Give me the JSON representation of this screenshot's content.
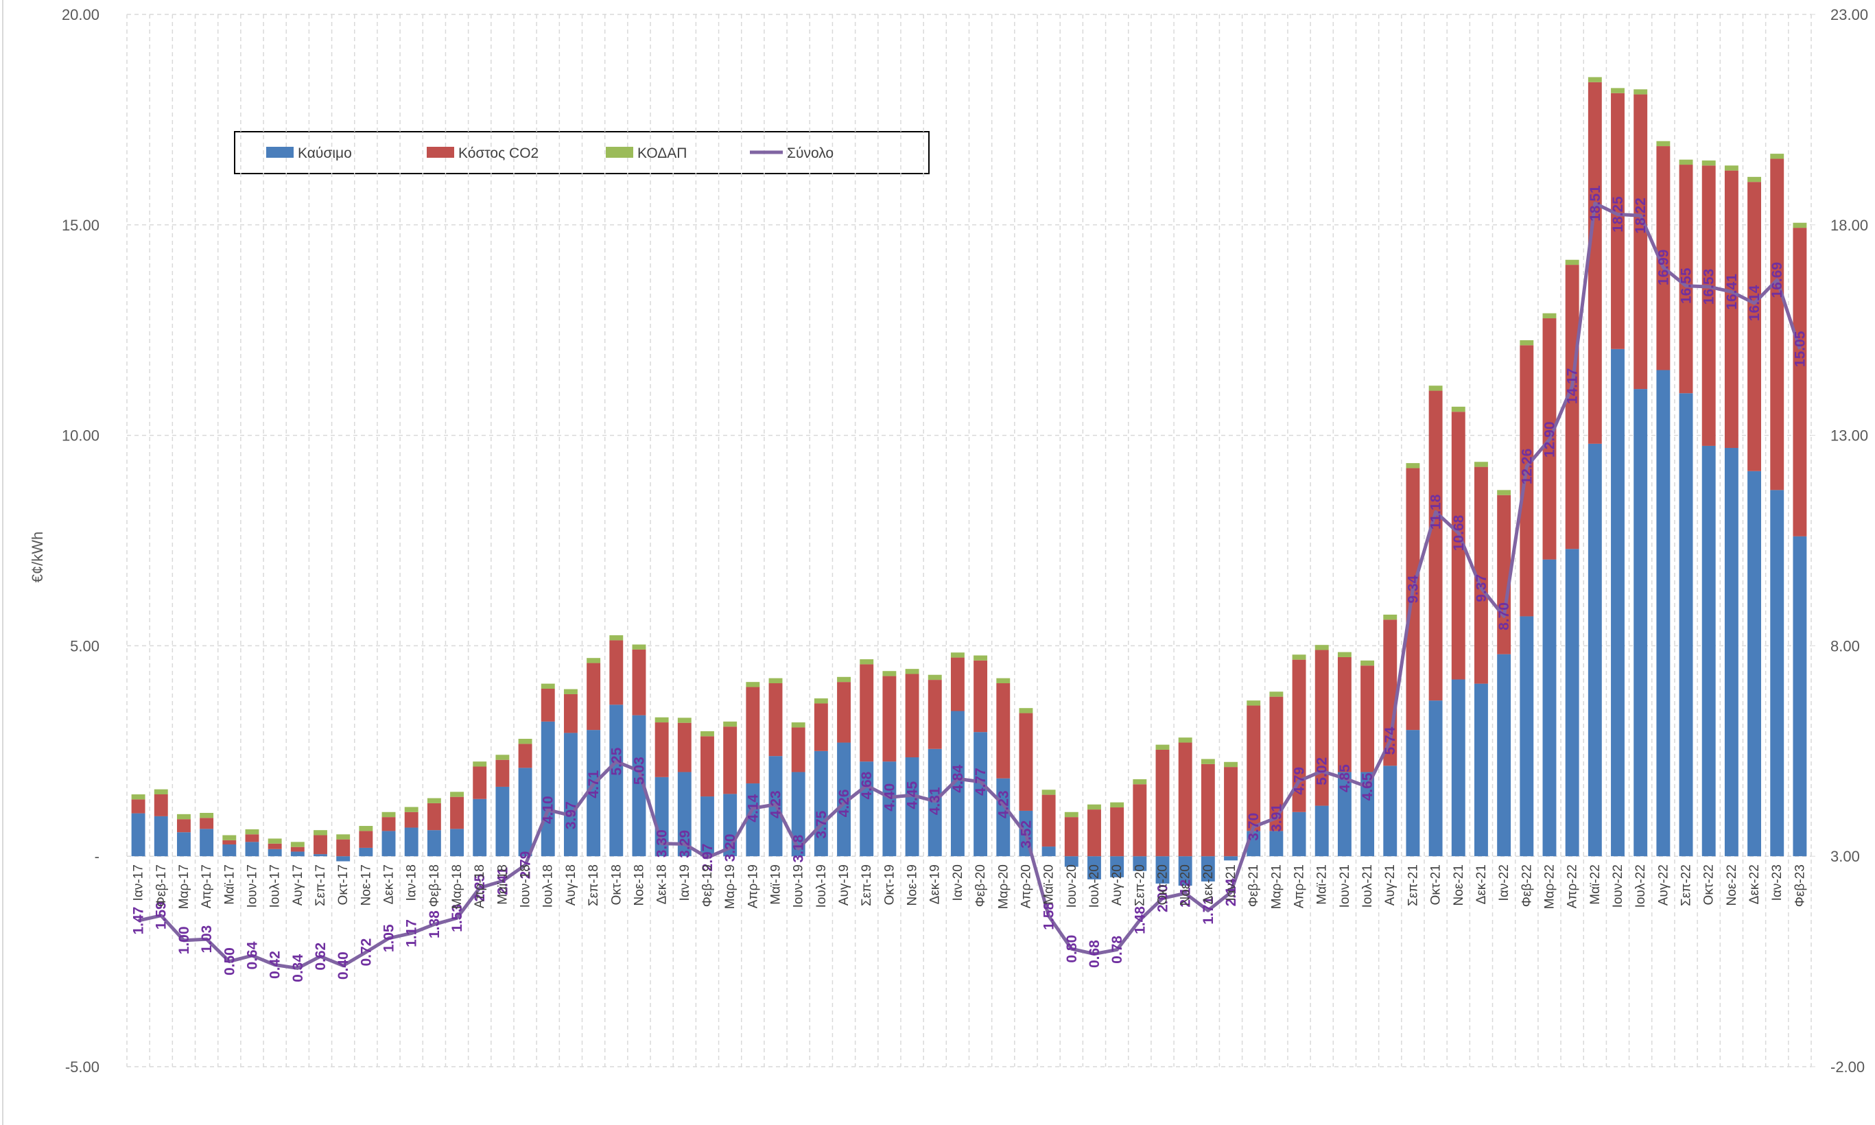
{
  "chart_data": {
    "type": "bar",
    "stacked": true,
    "y_label": "€¢/kWh",
    "legend": "upper left",
    "grid": true,
    "categories": [
      "Ιαν-17",
      "Φεβ-17",
      "Μαρ-17",
      "Απρ-17",
      "Μαϊ-17",
      "Ιουν-17",
      "Ιουλ-17",
      "Αυγ-17",
      "Σεπ-17",
      "Οκτ-17",
      "Νοε-17",
      "Δεκ-17",
      "Ιαν-18",
      "Φεβ-18",
      "Μαρ-18",
      "Απρ-18",
      "Μαϊ-18",
      "Ιουν-18",
      "Ιουλ-18",
      "Αυγ-18",
      "Σεπ-18",
      "Οκτ-18",
      "Νοε-18",
      "Δεκ-18",
      "Ιαν-19",
      "Φεβ-19",
      "Μαρ-19",
      "Απρ-19",
      "Μαϊ-19",
      "Ιουν-19",
      "Ιουλ-19",
      "Αυγ-19",
      "Σεπ-19",
      "Οκτ-19",
      "Νοε-19",
      "Δεκ-19",
      "Ιαν-20",
      "Φεβ-20",
      "Μαρ-20",
      "Απρ-20",
      "Μαϊ-20",
      "Ιουν-20",
      "Ιουλ-20",
      "Αυγ-20",
      "Σεπ-20",
      "Οκτ-20",
      "Νοε-20",
      "Δεκ-20",
      "Ιαν-21",
      "Φεβ-21",
      "Μαρ-21",
      "Απρ-21",
      "Μαϊ-21",
      "Ιουν-21",
      "Ιουλ-21",
      "Αυγ-21",
      "Σεπ-21",
      "Οκτ-21",
      "Νοε-21",
      "Δεκ-21",
      "Ιαν-22",
      "Φεβ-22",
      "Μαρ-22",
      "Απρ-22",
      "Μαϊ-22",
      "Ιουν-22",
      "Ιουλ-22",
      "Αυγ-22",
      "Σεπ-22",
      "Οκτ-22",
      "Νοε-22",
      "Δεκ-22",
      "Ιαν-23",
      "Φεβ-23"
    ],
    "ylim": [
      -5,
      20
    ],
    "yticks": [
      {
        "value": -5,
        "label": "-5.00"
      },
      {
        "value": 0,
        "label": "-"
      },
      {
        "value": 5,
        "label": "5.00"
      },
      {
        "value": 10,
        "label": "10.00"
      },
      {
        "value": 15,
        "label": "15.00"
      },
      {
        "value": 20,
        "label": "20.00"
      }
    ],
    "y2lim": [
      -2,
      23
    ],
    "y2ticks": [
      {
        "value": -2,
        "label": "-2.00"
      },
      {
        "value": 3,
        "label": "3.00"
      },
      {
        "value": 8,
        "label": "8.00"
      },
      {
        "value": 13,
        "label": "13.00"
      },
      {
        "value": 18,
        "label": "18.00"
      },
      {
        "value": 23,
        "label": "23.00"
      }
    ],
    "series": [
      {
        "name": "Καύσιμο",
        "color": "#4a7ebb",
        "values": [
          1.02,
          0.95,
          0.57,
          0.65,
          0.28,
          0.34,
          0.17,
          0.11,
          0.05,
          -0.12,
          0.2,
          0.6,
          0.68,
          0.62,
          0.65,
          1.36,
          1.65,
          2.1,
          3.2,
          2.93,
          3.0,
          3.6,
          3.35,
          1.88,
          2.0,
          1.42,
          1.48,
          1.73,
          2.38,
          2.0,
          2.5,
          2.7,
          2.25,
          2.25,
          2.35,
          2.55,
          3.45,
          2.95,
          1.85,
          1.08,
          0.23,
          -0.25,
          -0.55,
          -0.5,
          -0.35,
          -0.65,
          -0.7,
          -0.6,
          -0.1,
          0.6,
          0.6,
          1.05,
          1.2,
          2.0,
          2.0,
          2.15,
          3.0,
          3.7,
          4.2,
          4.1,
          4.8,
          5.7,
          7.05,
          7.3,
          9.8,
          12.05,
          11.1,
          11.55,
          11.0,
          9.75,
          9.7,
          9.15,
          8.7,
          7.6
        ]
      },
      {
        "name": "Κόστος CO2",
        "color": "#c0504d",
        "values": [
          0.33,
          0.52,
          0.31,
          0.26,
          0.1,
          0.18,
          0.13,
          0.11,
          0.45,
          0.4,
          0.4,
          0.33,
          0.37,
          0.64,
          0.76,
          0.77,
          0.64,
          0.57,
          0.78,
          0.92,
          1.59,
          1.53,
          1.56,
          1.3,
          1.17,
          1.43,
          1.6,
          2.29,
          1.73,
          1.06,
          1.13,
          1.44,
          2.31,
          2.03,
          1.98,
          1.64,
          1.27,
          1.7,
          2.26,
          2.32,
          1.23,
          0.93,
          1.11,
          1.16,
          1.71,
          2.53,
          2.7,
          2.19,
          2.12,
          2.98,
          3.19,
          3.62,
          3.7,
          2.73,
          2.53,
          3.47,
          6.22,
          7.36,
          6.36,
          5.15,
          3.78,
          6.44,
          5.73,
          6.75,
          8.59,
          6.08,
          7.0,
          5.32,
          5.43,
          6.66,
          6.59,
          6.87,
          7.87,
          7.33
        ]
      },
      {
        "name": "ΚΟΔΑΠ",
        "color": "#9bbb59",
        "values": [
          0.12,
          0.12,
          0.12,
          0.12,
          0.12,
          0.12,
          0.12,
          0.12,
          0.12,
          0.12,
          0.12,
          0.12,
          0.12,
          0.12,
          0.12,
          0.12,
          0.12,
          0.12,
          0.12,
          0.12,
          0.12,
          0.12,
          0.12,
          0.12,
          0.12,
          0.12,
          0.12,
          0.12,
          0.12,
          0.12,
          0.12,
          0.12,
          0.12,
          0.12,
          0.12,
          0.12,
          0.12,
          0.12,
          0.12,
          0.12,
          0.12,
          0.12,
          0.12,
          0.12,
          0.12,
          0.12,
          0.12,
          0.12,
          0.12,
          0.12,
          0.12,
          0.12,
          0.12,
          0.12,
          0.12,
          0.12,
          0.12,
          0.12,
          0.12,
          0.12,
          0.12,
          0.12,
          0.12,
          0.12,
          0.12,
          0.12,
          0.12,
          0.12,
          0.12,
          0.12,
          0.12,
          0.12,
          0.12,
          0.12
        ]
      },
      {
        "name": "Σύνολο",
        "color": "#8064a2",
        "type": "line",
        "axis": "y2",
        "values": [
          1.47,
          1.59,
          1.0,
          1.03,
          0.5,
          0.64,
          0.42,
          0.34,
          0.62,
          0.4,
          0.72,
          1.05,
          1.17,
          1.38,
          1.53,
          2.25,
          2.41,
          2.79,
          4.1,
          3.97,
          4.71,
          5.25,
          5.03,
          3.3,
          3.29,
          2.97,
          3.2,
          4.14,
          4.23,
          3.18,
          3.75,
          4.26,
          4.68,
          4.4,
          4.45,
          4.31,
          4.84,
          4.77,
          4.23,
          3.52,
          1.58,
          0.8,
          0.68,
          0.78,
          1.48,
          2.0,
          2.12,
          1.71,
          2.14,
          3.7,
          3.91,
          4.79,
          5.02,
          4.85,
          4.65,
          5.74,
          9.34,
          11.18,
          10.68,
          9.37,
          8.7,
          12.26,
          12.9,
          14.17,
          18.51,
          18.25,
          18.22,
          16.99,
          16.55,
          16.53,
          16.41,
          16.14,
          16.69,
          15.05
        ],
        "value_labels": [
          "1.47",
          "1.59",
          "1.00",
          "1.03",
          "0.50",
          "0.64",
          "0.42",
          "0.34",
          "0.62",
          "0.40",
          "0.72",
          "1.05",
          "1.17",
          "1.38",
          "1.53",
          "2.25",
          "2.41",
          "2.79",
          "4.10",
          "3.97",
          "4.71",
          "5.25",
          "5.03",
          "3.30",
          "3.29",
          "2.97",
          "3.20",
          "4.14",
          "4.23",
          "3.18",
          "3.75",
          "4.26",
          "4.68",
          "4.40",
          "4.45",
          "4.31",
          "4.84",
          "4.77",
          "4.23",
          "3.52",
          "1.58",
          "0.80",
          "0.68",
          "0.78",
          "1.48",
          "2.00",
          "2.12",
          "1.71",
          "2.14",
          "3.70",
          "3.91",
          "4.79",
          "5.02",
          "4.85",
          "4.65",
          "5.74",
          "9.34",
          "11.18",
          "10.68",
          "9.37",
          "8.70",
          "12.26",
          "12.90",
          "14.17",
          "18.51",
          "18.25",
          "18.22",
          "16.99",
          "16.55",
          "16.53",
          "16.41",
          "16.14",
          "16.69",
          "15.05"
        ]
      }
    ]
  }
}
